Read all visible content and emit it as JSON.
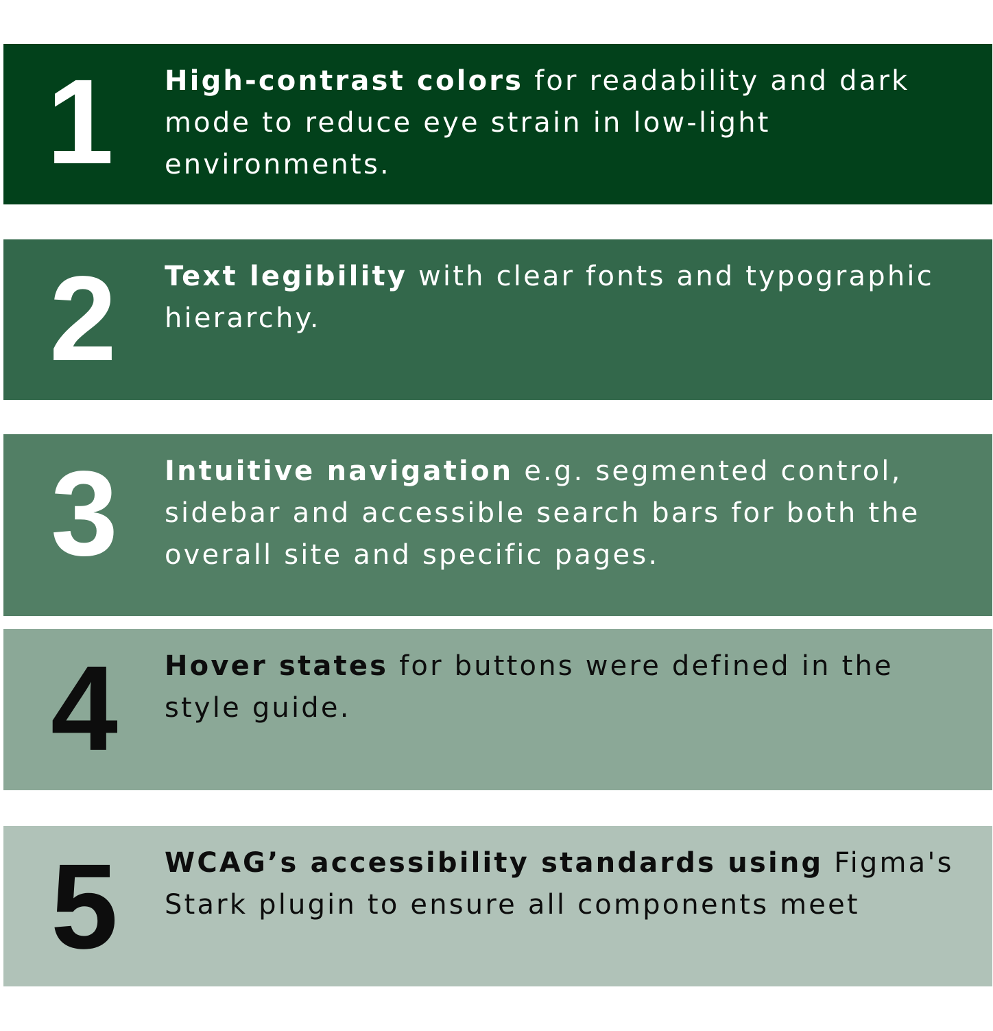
{
  "items": [
    {
      "number": "1",
      "bold": "High-contrast colors",
      "rest": " for readability and dark mode to reduce eye strain in low-light environments."
    },
    {
      "number": "2",
      "bold": "Text legibility",
      "rest": " with clear fonts and typographic hierarchy."
    },
    {
      "number": "3",
      "bold": "Intuitive navigation",
      "rest": " e.g. segmented control, sidebar and accessible search bars for both the overall site and specific pages."
    },
    {
      "number": "4",
      "bold": "Hover states",
      "rest": " for buttons were defined in the style guide."
    },
    {
      "number": "5",
      "bold": "WCAG’s accessibility standards using",
      "rest": " Figma's Stark plugin to ensure all components meet"
    }
  ],
  "colors": {
    "row_1": "#02411b",
    "row_2": "#33684b",
    "row_3": "#527f65",
    "row_4": "#8ba897",
    "row_5": "#b0c2b8",
    "light_text": "#ffffff",
    "dark_text": "#0d0d0d"
  }
}
